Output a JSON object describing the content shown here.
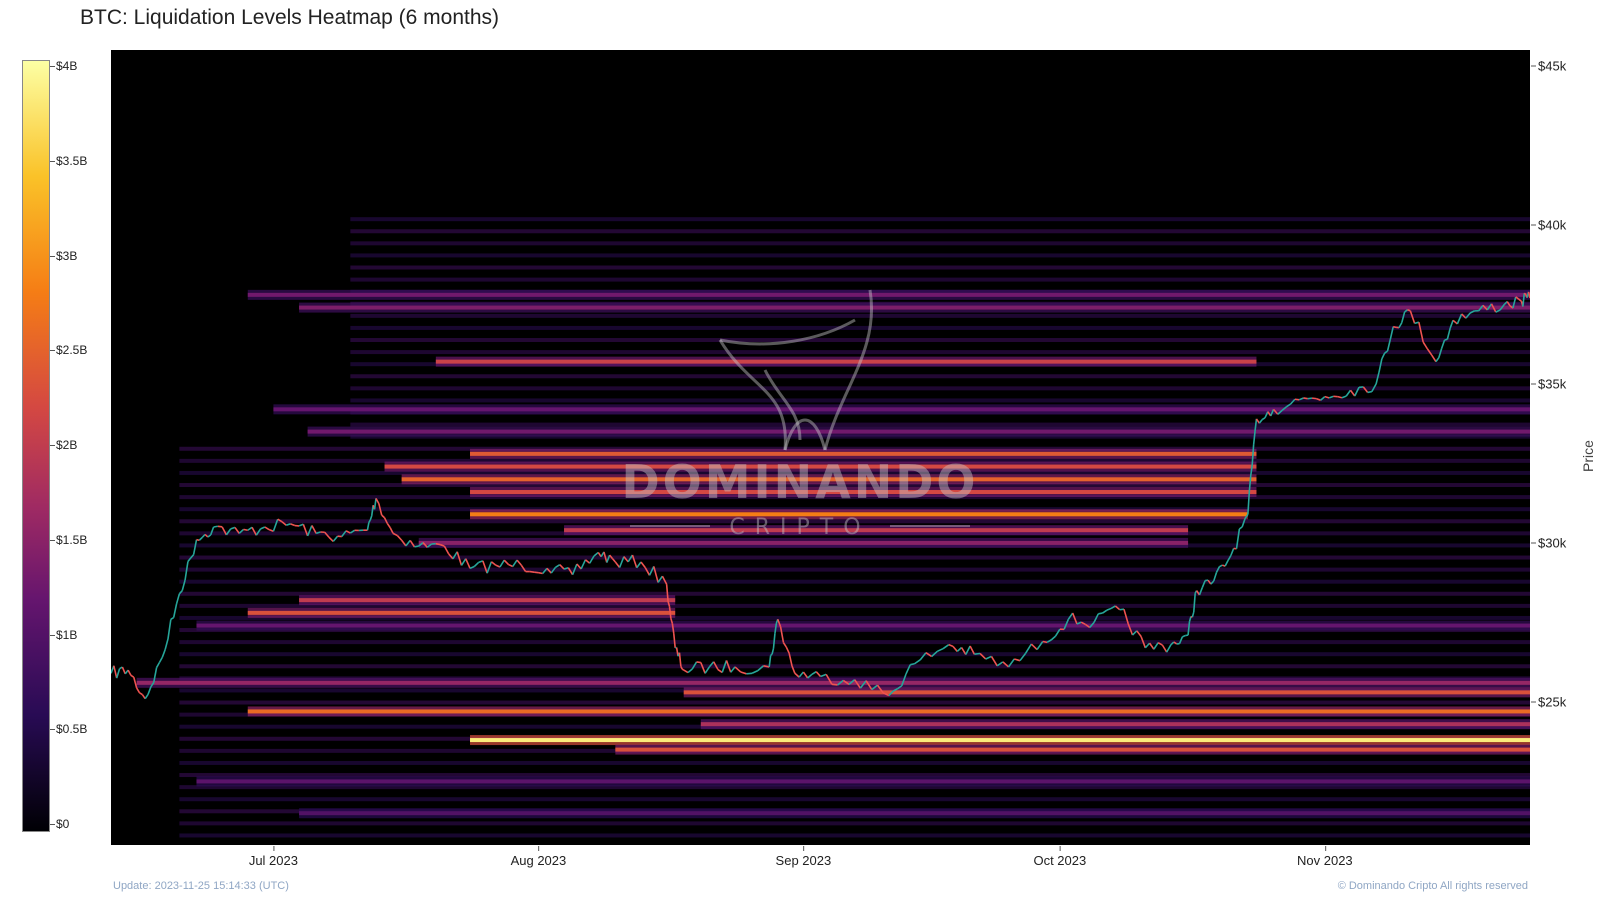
{
  "chart_data": {
    "type": "heatmap",
    "title": "BTC: Liquidation Levels Heatmap (6 months)",
    "ylabel": "Price",
    "ylim": [
      20500,
      45500
    ],
    "x_range": [
      "2023-06-12",
      "2023-11-25"
    ],
    "x_ticks": [
      {
        "label": "Jul 2023",
        "date": "2023-07-01"
      },
      {
        "label": "Aug 2023",
        "date": "2023-08-01"
      },
      {
        "label": "Sep 2023",
        "date": "2023-09-01"
      },
      {
        "label": "Oct 2023",
        "date": "2023-10-01"
      },
      {
        "label": "Nov 2023",
        "date": "2023-11-01"
      }
    ],
    "y_ticks": [
      {
        "label": "$25k",
        "value": 25000
      },
      {
        "label": "$30k",
        "value": 30000
      },
      {
        "label": "$35k",
        "value": 35000
      },
      {
        "label": "$40k",
        "value": 40000
      },
      {
        "label": "$45k",
        "value": 45000
      }
    ],
    "colorbar": {
      "min": 0,
      "max": 4000000000,
      "ticks": [
        {
          "label": "$0",
          "value": 0
        },
        {
          "label": "$0.5B",
          "value": 500000000
        },
        {
          "label": "$1B",
          "value": 1000000000
        },
        {
          "label": "$1.5B",
          "value": 1500000000
        },
        {
          "label": "$2B",
          "value": 2000000000
        },
        {
          "label": "$2.5B",
          "value": 2500000000
        },
        {
          "label": "$3B",
          "value": 3000000000
        },
        {
          "label": "$3.5B",
          "value": 3500000000
        },
        {
          "label": "$4B",
          "value": 4000000000
        }
      ]
    },
    "liquidation_bands": [
      {
        "price": 37800,
        "start": "2023-06-28",
        "end": "2023-11-25",
        "value": 1300000000
      },
      {
        "price": 37400,
        "start": "2023-07-04",
        "end": "2023-11-25",
        "value": 1400000000
      },
      {
        "price": 35700,
        "start": "2023-07-20",
        "end": "2023-10-24",
        "value": 2100000000
      },
      {
        "price": 34200,
        "start": "2023-07-01",
        "end": "2023-11-25",
        "value": 1200000000
      },
      {
        "price": 33500,
        "start": "2023-07-05",
        "end": "2023-11-25",
        "value": 1300000000
      },
      {
        "price": 32800,
        "start": "2023-07-24",
        "end": "2023-10-24",
        "value": 2400000000
      },
      {
        "price": 32400,
        "start": "2023-07-14",
        "end": "2023-10-24",
        "value": 2200000000
      },
      {
        "price": 32000,
        "start": "2023-07-16",
        "end": "2023-10-24",
        "value": 2500000000
      },
      {
        "price": 31600,
        "start": "2023-07-24",
        "end": "2023-10-24",
        "value": 2200000000
      },
      {
        "price": 30900,
        "start": "2023-07-24",
        "end": "2023-10-23",
        "value": 2800000000
      },
      {
        "price": 30400,
        "start": "2023-08-04",
        "end": "2023-10-16",
        "value": 2000000000
      },
      {
        "price": 30000,
        "start": "2023-07-18",
        "end": "2023-10-16",
        "value": 1500000000
      },
      {
        "price": 28200,
        "start": "2023-07-04",
        "end": "2023-08-17",
        "value": 2000000000
      },
      {
        "price": 27800,
        "start": "2023-06-28",
        "end": "2023-08-17",
        "value": 2300000000
      },
      {
        "price": 27400,
        "start": "2023-06-22",
        "end": "2023-11-25",
        "value": 1200000000
      },
      {
        "price": 25600,
        "start": "2023-06-15",
        "end": "2023-11-25",
        "value": 1600000000
      },
      {
        "price": 25300,
        "start": "2023-08-18",
        "end": "2023-11-25",
        "value": 2300000000
      },
      {
        "price": 24700,
        "start": "2023-06-28",
        "end": "2023-11-25",
        "value": 2600000000
      },
      {
        "price": 24300,
        "start": "2023-08-20",
        "end": "2023-11-25",
        "value": 1800000000
      },
      {
        "price": 23800,
        "start": "2023-07-24",
        "end": "2023-11-25",
        "value": 3800000000
      },
      {
        "price": 23500,
        "start": "2023-08-10",
        "end": "2023-11-25",
        "value": 2300000000
      },
      {
        "price": 22500,
        "start": "2023-06-22",
        "end": "2023-11-25",
        "value": 1100000000
      },
      {
        "price": 21500,
        "start": "2023-07-04",
        "end": "2023-11-25",
        "value": 1000000000
      }
    ],
    "price_series": {
      "dates": [
        "2023-06-12",
        "2023-06-14",
        "2023-06-16",
        "2023-06-18",
        "2023-06-20",
        "2023-06-22",
        "2023-06-24",
        "2023-06-27",
        "2023-06-30",
        "2023-07-03",
        "2023-07-06",
        "2023-07-09",
        "2023-07-12",
        "2023-07-13",
        "2023-07-15",
        "2023-07-18",
        "2023-07-21",
        "2023-07-24",
        "2023-07-27",
        "2023-07-30",
        "2023-08-02",
        "2023-08-05",
        "2023-08-08",
        "2023-08-10",
        "2023-08-13",
        "2023-08-16",
        "2023-08-17",
        "2023-08-18",
        "2023-08-21",
        "2023-08-24",
        "2023-08-28",
        "2023-08-29",
        "2023-08-31",
        "2023-09-03",
        "2023-09-07",
        "2023-09-11",
        "2023-09-14",
        "2023-09-18",
        "2023-09-21",
        "2023-09-25",
        "2023-09-29",
        "2023-10-02",
        "2023-10-05",
        "2023-10-08",
        "2023-10-11",
        "2023-10-14",
        "2023-10-16",
        "2023-10-17",
        "2023-10-19",
        "2023-10-21",
        "2023-10-23",
        "2023-10-24",
        "2023-10-26",
        "2023-10-29",
        "2023-11-01",
        "2023-11-04",
        "2023-11-07",
        "2023-11-09",
        "2023-11-11",
        "2023-11-14",
        "2023-11-16",
        "2023-11-19",
        "2023-11-22",
        "2023-11-24",
        "2023-11-25"
      ],
      "values": [
        25900,
        26000,
        25100,
        26400,
        28400,
        30100,
        30500,
        30300,
        30500,
        30600,
        30300,
        30200,
        30400,
        31400,
        30300,
        29900,
        29900,
        29200,
        29300,
        29300,
        29200,
        29000,
        29700,
        29400,
        29400,
        28700,
        26700,
        26000,
        26100,
        26100,
        26100,
        27600,
        25900,
        25800,
        25700,
        25200,
        26200,
        26800,
        26500,
        26100,
        26900,
        27600,
        27500,
        27900,
        26700,
        26800,
        27100,
        28500,
        28800,
        29600,
        30900,
        33900,
        34200,
        34500,
        34600,
        34800,
        35000,
        36800,
        37300,
        35700,
        37000,
        37300,
        37500,
        37600,
        37700
      ]
    }
  },
  "footer": {
    "update": "Update: 2023-11-25 15:14:33 (UTC)",
    "copyright": "© Dominando Cripto All rights reserved"
  },
  "watermark": {
    "name": "DOMINANDO",
    "sub": "CRIPTO"
  }
}
